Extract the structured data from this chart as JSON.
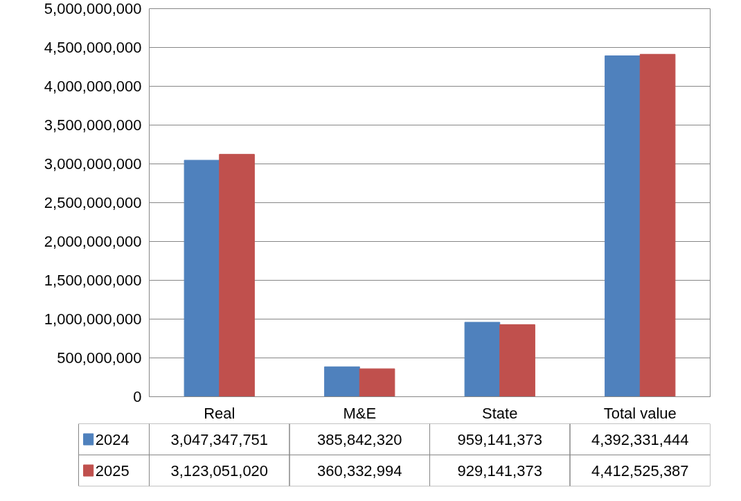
{
  "chart_data": {
    "type": "bar",
    "categories": [
      "Real",
      "M&E",
      "State",
      "Total value"
    ],
    "series": [
      {
        "name": "2024",
        "color": "#4f81bd",
        "values": [
          3047347751,
          385842320,
          959141373,
          4392331444
        ],
        "value_labels": [
          "3,047,347,751",
          "385,842,320",
          "959,141,373",
          "4,392,331,444"
        ]
      },
      {
        "name": "2025",
        "color": "#c0504d",
        "values": [
          3123051020,
          360332994,
          929141373,
          4412525387
        ],
        "value_labels": [
          "3,123,051,020",
          "360,332,994",
          "929,141,373",
          "4,412,525,387"
        ]
      }
    ],
    "ylim": [
      0,
      5000000000
    ],
    "yticks": [
      {
        "value": 0,
        "label": "0"
      },
      {
        "value": 500000000,
        "label": "500,000,000"
      },
      {
        "value": 1000000000,
        "label": "1,000,000,000"
      },
      {
        "value": 1500000000,
        "label": "1,500,000,000"
      },
      {
        "value": 2000000000,
        "label": "2,000,000,000"
      },
      {
        "value": 2500000000,
        "label": "2,500,000,000"
      },
      {
        "value": 3000000000,
        "label": "3,000,000,000"
      },
      {
        "value": 3500000000,
        "label": "3,500,000,000"
      },
      {
        "value": 4000000000,
        "label": "4,000,000,000"
      },
      {
        "value": 4500000000,
        "label": "4,500,000,000"
      },
      {
        "value": 5000000000,
        "label": "5,000,000,000"
      }
    ],
    "grid": "y",
    "legend": "bottom"
  }
}
